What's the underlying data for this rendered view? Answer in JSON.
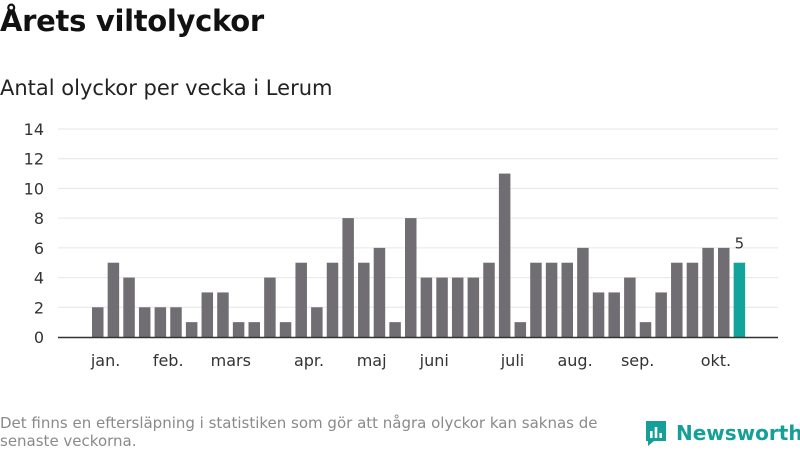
{
  "header": {
    "title": "Årets viltolyckor",
    "subtitle": "Antal olyckor per vecka i Lerum"
  },
  "footer": {
    "note": "Det finns en eftersläpning i statistiken som gör att några olyckor kan saknas de senaste veckorna.",
    "brand": "Newsworthy"
  },
  "colors": {
    "bar": "#706e73",
    "highlight": "#12a39b",
    "grid": "#e6e6e6",
    "axis": "#333333"
  },
  "chart_data": {
    "type": "bar",
    "title": "Antal olyckor per vecka i Lerum",
    "xlabel": "",
    "ylabel": "",
    "ylim": [
      0,
      14
    ],
    "yticks": [
      0,
      2,
      4,
      6,
      8,
      10,
      12,
      14
    ],
    "grid": true,
    "weeks": [
      1,
      2,
      3,
      4,
      5,
      6,
      7,
      8,
      9,
      10,
      11,
      12,
      13,
      14,
      15,
      16,
      17,
      18,
      19,
      20,
      21,
      22,
      23,
      24,
      25,
      26,
      27,
      28,
      29,
      30,
      31,
      32,
      33,
      34,
      35,
      36,
      37,
      38,
      39,
      40,
      41,
      42
    ],
    "values": [
      2,
      5,
      4,
      2,
      2,
      2,
      1,
      3,
      3,
      1,
      1,
      4,
      1,
      5,
      2,
      5,
      8,
      5,
      6,
      1,
      8,
      4,
      4,
      4,
      4,
      5,
      11,
      1,
      5,
      5,
      5,
      6,
      3,
      3,
      4,
      1,
      3,
      5,
      5,
      6,
      6,
      5
    ],
    "highlight_index": 41,
    "highlight_label": "5",
    "month_labels": [
      {
        "label": "jan.",
        "week": 1.5
      },
      {
        "label": "feb.",
        "week": 5.5
      },
      {
        "label": "mars",
        "week": 9.5
      },
      {
        "label": "apr.",
        "week": 14.5
      },
      {
        "label": "maj",
        "week": 18.5
      },
      {
        "label": "juni",
        "week": 22.5
      },
      {
        "label": "juli",
        "week": 27.5
      },
      {
        "label": "aug.",
        "week": 31.5
      },
      {
        "label": "sep.",
        "week": 35.5
      },
      {
        "label": "okt.",
        "week": 40.5
      }
    ]
  }
}
